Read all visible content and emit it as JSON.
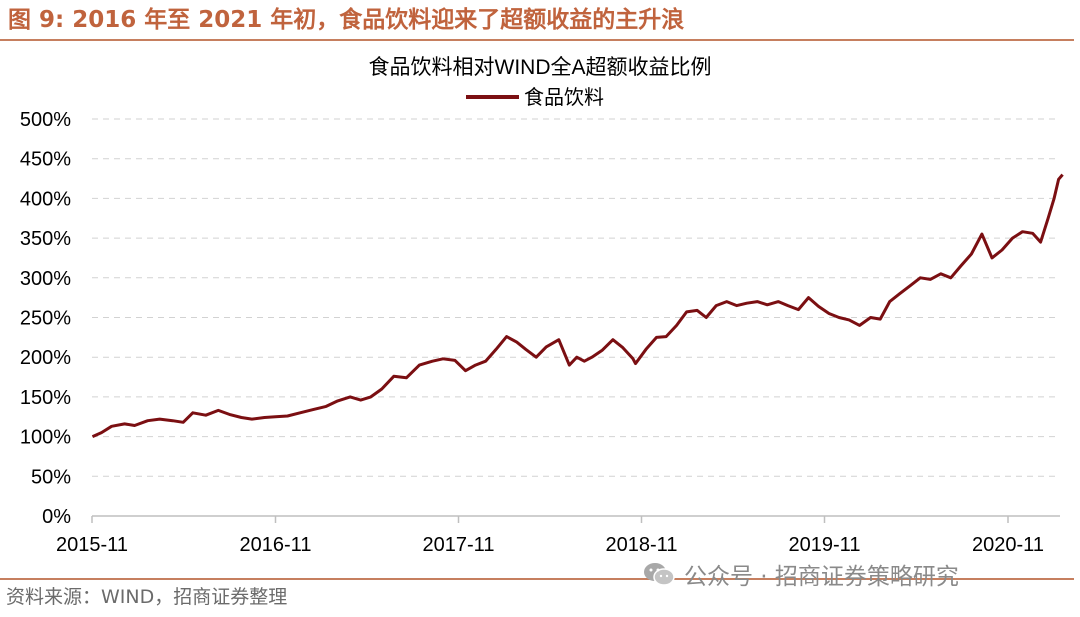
{
  "figure": {
    "title": "图 9: 2016 年至 2021 年初，食品饮料迎来了超额收益的主升浪",
    "source": "资料来源：WIND，招商证券整理",
    "watermark": "公众号 · 招商证券策略研究"
  },
  "chart_data": {
    "type": "line",
    "title": "食品饮料相对WIND全A超额收益比例",
    "xlabel": "",
    "ylabel": "",
    "ylim": [
      0,
      500
    ],
    "yticks": [
      0,
      50,
      100,
      150,
      200,
      250,
      300,
      350,
      400,
      450,
      500
    ],
    "ytick_labels": [
      "0%",
      "50%",
      "100%",
      "150%",
      "200%",
      "250%",
      "300%",
      "350%",
      "400%",
      "450%",
      "500%"
    ],
    "xlim": [
      "2015-11-01",
      "2021-02-28"
    ],
    "xticks": [
      "2015-11",
      "2016-11",
      "2017-11",
      "2018-11",
      "2019-11",
      "2020-11"
    ],
    "grid": "horizontal dashed",
    "legend_position": "top-center",
    "series": [
      {
        "name": "食品饮料",
        "color": "#7b0f12",
        "x": [
          "2015-11-02",
          "2015-11-20",
          "2015-12-10",
          "2016-01-05",
          "2016-01-25",
          "2016-02-20",
          "2016-03-15",
          "2016-04-10",
          "2016-05-01",
          "2016-05-20",
          "2016-06-15",
          "2016-07-10",
          "2016-08-01",
          "2016-08-25",
          "2016-09-15",
          "2016-10-10",
          "2016-11-01",
          "2016-11-25",
          "2016-12-20",
          "2017-01-15",
          "2017-02-10",
          "2017-03-05",
          "2017-03-30",
          "2017-04-20",
          "2017-05-10",
          "2017-06-01",
          "2017-06-25",
          "2017-07-20",
          "2017-08-15",
          "2017-09-10",
          "2017-10-01",
          "2017-10-25",
          "2017-11-15",
          "2017-12-05",
          "2017-12-25",
          "2018-01-15",
          "2018-02-05",
          "2018-02-25",
          "2018-03-15",
          "2018-04-05",
          "2018-04-25",
          "2018-05-20",
          "2018-06-10",
          "2018-06-25",
          "2018-07-10",
          "2018-07-25",
          "2018-08-15",
          "2018-09-05",
          "2018-09-25",
          "2018-10-15",
          "2018-10-20",
          "2018-11-10",
          "2018-12-01",
          "2018-12-20",
          "2019-01-10",
          "2019-01-30",
          "2019-02-20",
          "2019-03-10",
          "2019-03-30",
          "2019-04-20",
          "2019-05-10",
          "2019-05-30",
          "2019-06-20",
          "2019-07-10",
          "2019-08-01",
          "2019-08-20",
          "2019-09-10",
          "2019-09-30",
          "2019-10-20",
          "2019-11-10",
          "2019-11-30",
          "2019-12-20",
          "2020-01-10",
          "2020-02-01",
          "2020-02-20",
          "2020-03-10",
          "2020-03-30",
          "2020-04-20",
          "2020-05-10",
          "2020-05-30",
          "2020-06-20",
          "2020-07-10",
          "2020-07-30",
          "2020-08-20",
          "2020-09-10",
          "2020-09-30",
          "2020-10-20",
          "2020-11-10",
          "2020-11-30",
          "2020-12-20",
          "2021-01-05",
          "2021-01-20",
          "2021-02-01",
          "2021-02-10",
          "2021-02-18"
        ],
        "values": [
          100,
          105,
          113,
          116,
          114,
          120,
          122,
          120,
          118,
          130,
          127,
          133,
          128,
          124,
          122,
          124,
          125,
          126,
          130,
          134,
          138,
          145,
          150,
          146,
          150,
          160,
          176,
          174,
          190,
          195,
          198,
          196,
          183,
          190,
          195,
          210,
          226,
          219,
          210,
          200,
          213,
          222,
          190,
          200,
          195,
          200,
          209,
          222,
          212,
          198,
          192,
          210,
          225,
          226,
          240,
          257,
          259,
          250,
          265,
          270,
          265,
          268,
          270,
          266,
          270,
          265,
          260,
          275,
          264,
          255,
          250,
          247,
          240,
          250,
          248,
          270,
          280,
          290,
          300,
          298,
          305,
          300,
          315,
          330,
          355,
          325,
          335,
          350,
          358,
          356,
          345,
          375,
          400,
          424,
          430
        ]
      }
    ]
  }
}
